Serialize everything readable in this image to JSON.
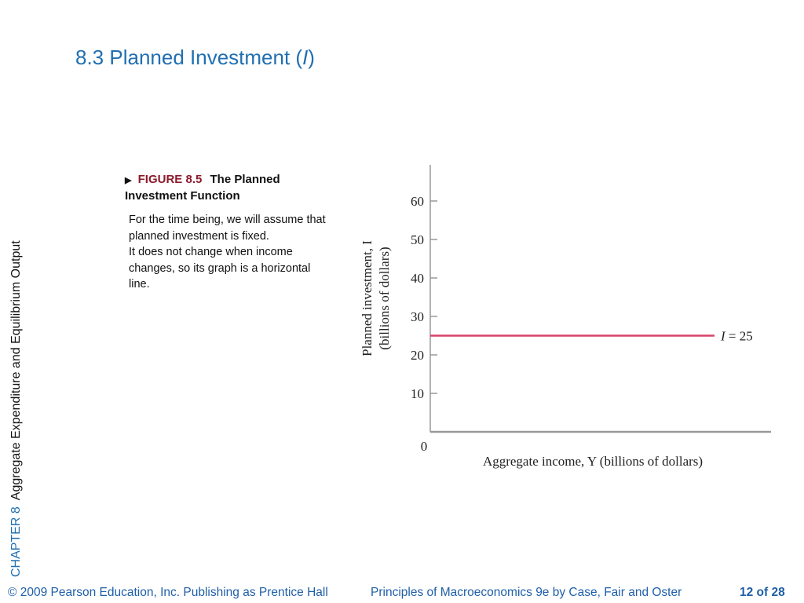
{
  "slide": {
    "title_prefix": "8.3 Planned Investment (",
    "title_italic": "I",
    "title_suffix": ")"
  },
  "side": {
    "chapter": "CHAPTER 8",
    "chapter_title": "Aggregate Expenditure and Equilibrium Output"
  },
  "figure": {
    "arrow": "▶",
    "label": "FIGURE 8.5",
    "title": "The Planned Investment Function",
    "description": [
      "For the time being, we will assume that planned investment is fixed.",
      "It does not change when income changes, so its graph is a horizontal line."
    ]
  },
  "chart_data": {
    "type": "line",
    "ylabel_line1": "Planned investment, I",
    "ylabel_line2": "(billions of dollars)",
    "xlabel": "Aggregate income, Y (billions of dollars)",
    "origin_label": "0",
    "y_ticks": [
      10,
      20,
      30,
      40,
      50,
      60
    ],
    "ylim": [
      0,
      70
    ],
    "series": [
      {
        "name": "I = 25",
        "values": [
          25,
          25
        ]
      }
    ],
    "line_label": "I = 25",
    "line_color": "#d9426a",
    "axis_color": "#999999"
  },
  "footer": {
    "copyright": "© 2009 Pearson Education, Inc. Publishing as Prentice Hall",
    "book": "Principles of Macroeconomics 9e by Case, Fair and Oster",
    "page": "12 of 28"
  }
}
